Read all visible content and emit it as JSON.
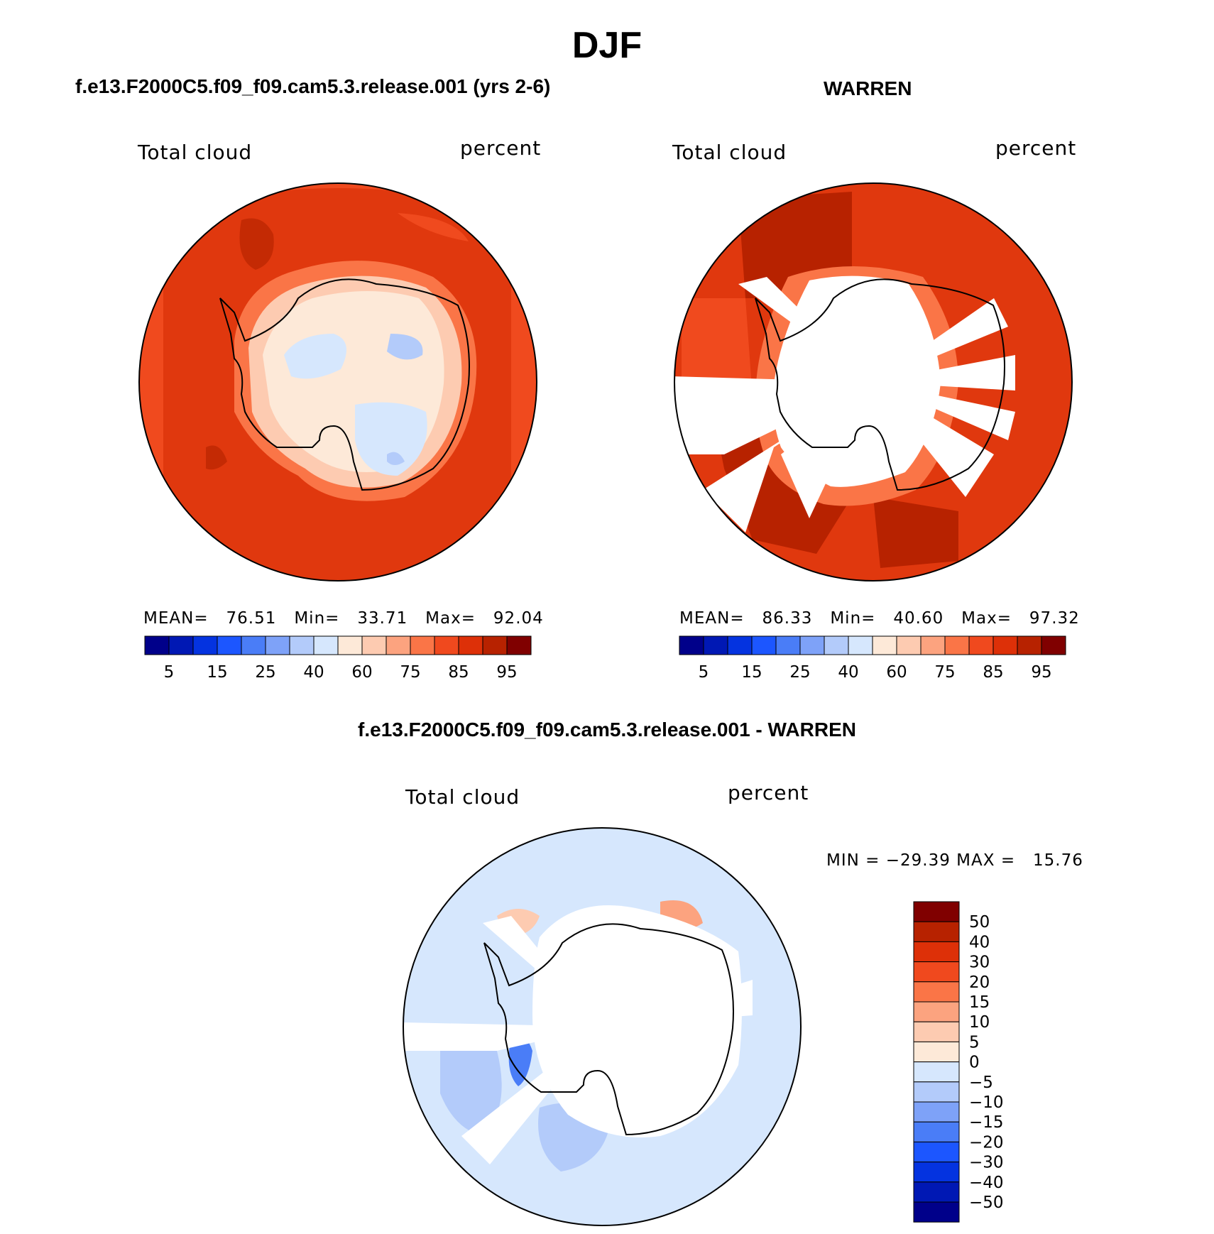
{
  "title": "DJF",
  "panels": [
    {
      "id": "model",
      "heading": "f.e13.F2000C5.f09_f09.cam5.3.release.001 (yrs 2-6)",
      "variable": "Total cloud",
      "units": "percent",
      "stats": {
        "mean_label": "MEAN=",
        "mean": "76.51",
        "min_label": "Min=",
        "min": "33.71",
        "max_label": "Max=",
        "max": "92.04"
      }
    },
    {
      "id": "obs",
      "heading": "WARREN",
      "variable": "Total cloud",
      "units": "percent",
      "stats": {
        "mean_label": "MEAN=",
        "mean": "86.33",
        "min_label": "Min=",
        "min": "40.60",
        "max_label": "Max=",
        "max": "97.32"
      }
    },
    {
      "id": "diff",
      "heading": "f.e13.F2000C5.f09_f09.cam5.3.release.001 - WARREN",
      "variable": "Total cloud",
      "units": "percent",
      "stats": {
        "min_label": "MIN =",
        "min": "−29.39",
        "max_label": "MAX =",
        "max": "15.76"
      }
    }
  ],
  "colorbar_abs": {
    "colors": [
      "#00008a",
      "#0018b4",
      "#0433e0",
      "#1c56ff",
      "#4a7df7",
      "#7ea2f8",
      "#b3cbfa",
      "#d6e7fd",
      "#fde9d8",
      "#fdcbb1",
      "#fca37f",
      "#fa7547",
      "#f0491e",
      "#dd3008",
      "#b72200",
      "#800000"
    ],
    "labels": [
      "5",
      "15",
      "25",
      "40",
      "60",
      "75",
      "85",
      "95"
    ]
  },
  "colorbar_diff": {
    "colors_top_to_bottom": [
      "#800000",
      "#b72200",
      "#dd3008",
      "#f0491e",
      "#fa7547",
      "#fca37f",
      "#fdcbb1",
      "#fde9d8",
      "#d6e7fd",
      "#b3cbfa",
      "#7ea2f8",
      "#4a7df7",
      "#1c56ff",
      "#0433e0",
      "#0018b4",
      "#00008a"
    ],
    "labels": [
      "50",
      "40",
      "30",
      "20",
      "15",
      "10",
      "5",
      "0",
      "−5",
      "−10",
      "−15",
      "−20",
      "−30",
      "−40",
      "−50"
    ]
  },
  "colors": {
    "ocean_model": "#e0380e",
    "ocean_model_outer": "#f04a1e",
    "ocean_obs": "#e0380e",
    "diff_background": "#d6e7fd",
    "missing": "#ffffff",
    "coast": "#000000"
  }
}
